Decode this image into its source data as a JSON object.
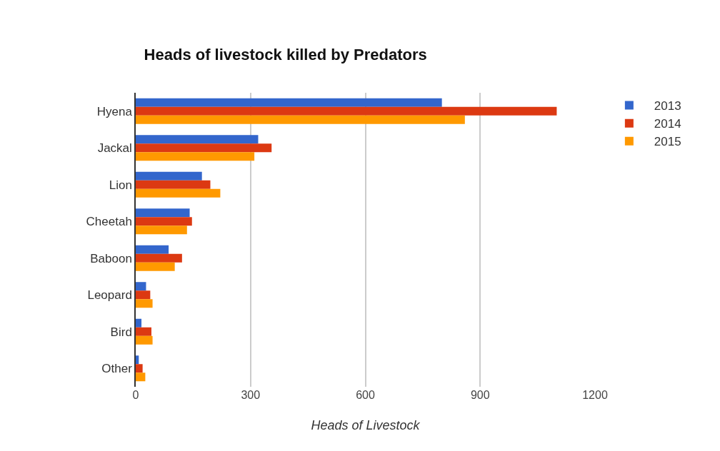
{
  "chart_data": {
    "type": "bar",
    "orientation": "horizontal",
    "title": "Heads of livestock killed by Predators",
    "xlabel": "Heads of Livestock",
    "categories": [
      "Hyena",
      "Jackal",
      "Lion",
      "Cheetah",
      "Baboon",
      "Leopard",
      "Bird",
      "Other"
    ],
    "series": [
      {
        "name": "2013",
        "color": "#3366cc",
        "values": [
          800,
          320,
          173,
          141,
          86,
          27,
          15,
          8
        ]
      },
      {
        "name": "2014",
        "color": "#dc3912",
        "values": [
          1100,
          355,
          195,
          147,
          121,
          38,
          41,
          18
        ]
      },
      {
        "name": "2015",
        "color": "#ff9900",
        "values": [
          860,
          310,
          221,
          134,
          102,
          44,
          44,
          25
        ]
      }
    ],
    "xlim": [
      0,
      1200
    ],
    "xticks": [
      0,
      300,
      600,
      900,
      1200
    ],
    "grid": "x",
    "legend": "top right"
  }
}
